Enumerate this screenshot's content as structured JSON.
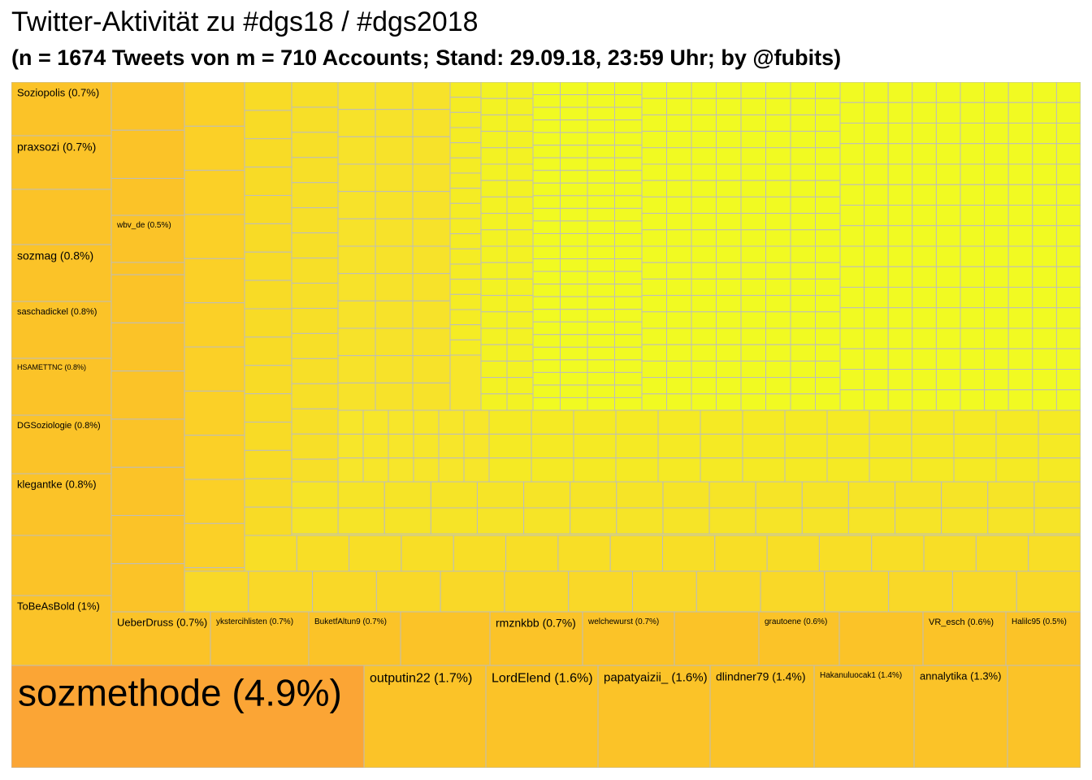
{
  "chart_data": {
    "type": "treemap",
    "title": "Twitter-Aktivität zu #dgs18 / #dgs2018",
    "subtitle": "(n = 1674 Tweets von m = 710 Accounts; Stand: 29.09.18, 23:59 Uhr; by @fubits)",
    "colors": {
      "high": "#fba535",
      "mid": "#fbc328",
      "low": "#f7e62a",
      "lowest": "#f1fa22",
      "border": "#bdbdbd"
    },
    "labeled_items": [
      {
        "label": "sozmethode (4.9%)",
        "share": 4.9
      },
      {
        "label": "outputin22 (1.7%)",
        "share": 1.7
      },
      {
        "label": "LordElend (1.6%)",
        "share": 1.6
      },
      {
        "label": "papatyaizii_ (1.6%)",
        "share": 1.6
      },
      {
        "label": "dlindner79 (1.4%)",
        "share": 1.4
      },
      {
        "label": "Hakanuluocak1 (1.4%)",
        "share": 1.4
      },
      {
        "label": "annalytika (1.3%)",
        "share": 1.3
      },
      {
        "label": "ToBeAsBold (1%)",
        "share": 1.0
      },
      {
        "label": "klegantke (0.8%)",
        "share": 0.8
      },
      {
        "label": "DGSoziologie (0.8%)",
        "share": 0.8
      },
      {
        "label": "HSAMETTNC (0.8%)",
        "share": 0.8
      },
      {
        "label": "saschadickel (0.8%)",
        "share": 0.8
      },
      {
        "label": "sozmag (0.8%)",
        "share": 0.8
      },
      {
        "label": "praxsozi (0.7%)",
        "share": 0.7
      },
      {
        "label": "Soziopolis (0.7%)",
        "share": 0.7
      },
      {
        "label": "UeberDruss (0.7%)",
        "share": 0.7
      },
      {
        "label": "ykstercihlisten (0.7%)",
        "share": 0.7
      },
      {
        "label": "BuketfAltun9 (0.7%)",
        "share": 0.7
      },
      {
        "label": "rmznkbb (0.7%)",
        "share": 0.7
      },
      {
        "label": "welchewurst (0.7%)",
        "share": 0.7
      },
      {
        "label": "grautoene (0.6%)",
        "share": 0.6
      },
      {
        "label": "VR_esch (0.6%)",
        "share": 0.6
      },
      {
        "label": "Halilc95 (0.5%)",
        "share": 0.5
      },
      {
        "label": "wbv_de (0.5%)",
        "share": 0.5
      }
    ]
  }
}
